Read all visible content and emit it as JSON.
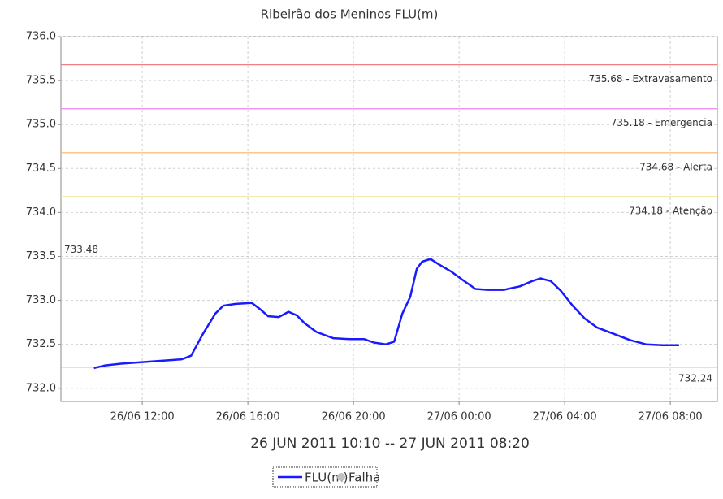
{
  "chart_data": {
    "type": "line",
    "title": "Ribeirão dos Meninos FLU(m)",
    "xlabel": "26 JUN 2011 10:10 -- 27 JUN 2011 08:20",
    "xlim": [
      8.92,
      33.78
    ],
    "xticks": [
      {
        "value": 12,
        "label": "26/06 12:00"
      },
      {
        "value": 16,
        "label": "26/06 16:00"
      },
      {
        "value": 20,
        "label": "26/06 20:00"
      },
      {
        "value": 24,
        "label": "27/06 00:00"
      },
      {
        "value": 28,
        "label": "27/06 04:00"
      },
      {
        "value": 32,
        "label": "27/06 08:00"
      }
    ],
    "ylim": [
      731.85,
      736.0
    ],
    "yticks": [
      {
        "value": 732,
        "label": "732.0"
      },
      732.5,
      {
        "value": 733,
        "label": "733.0"
      },
      733.5,
      {
        "value": 734,
        "label": "734.0"
      },
      734.5,
      {
        "value": 735,
        "label": "735.0"
      },
      735.5,
      {
        "value": 736,
        "label": "736.0"
      }
    ],
    "grid": true,
    "series": [
      {
        "name": "FLU(m)",
        "color": "#1a1aff",
        "x": [
          10.17,
          10.6,
          11.2,
          12.15,
          13.07,
          13.5,
          13.85,
          14.3,
          14.77,
          15.07,
          15.54,
          16.15,
          16.46,
          16.77,
          17.17,
          17.54,
          17.85,
          18.15,
          18.6,
          19.23,
          19.84,
          20.4,
          20.77,
          21.23,
          21.54,
          21.85,
          22.15,
          22.4,
          22.6,
          22.92,
          23.23,
          23.69,
          24.15,
          24.62,
          25.08,
          25.69,
          26.3,
          26.77,
          27.08,
          27.47,
          27.85,
          28.3,
          28.77,
          29.23,
          29.85,
          30.46,
          31.08,
          31.69,
          32.33
        ],
        "values": [
          732.23,
          732.26,
          732.28,
          732.3,
          732.32,
          732.33,
          732.37,
          732.62,
          732.85,
          732.94,
          732.96,
          732.97,
          732.9,
          732.82,
          732.81,
          732.87,
          732.83,
          732.74,
          732.64,
          732.57,
          732.56,
          732.56,
          732.52,
          732.5,
          732.53,
          732.85,
          733.04,
          733.36,
          733.44,
          733.47,
          733.41,
          733.33,
          733.23,
          733.13,
          733.12,
          733.12,
          733.16,
          733.22,
          733.25,
          733.22,
          733.11,
          732.94,
          732.79,
          732.69,
          732.62,
          732.55,
          732.5,
          732.49,
          732.49
        ]
      }
    ],
    "extra_legend": {
      "name": "Falha",
      "color": "#c0c0c0"
    },
    "annotations": [
      {
        "value": 735.68,
        "label": "735.68 - Extravasamento",
        "color": "#f08080"
      },
      {
        "value": 735.18,
        "label": "735.18 - Emergencia",
        "color": "#ee82ee"
      },
      {
        "value": 734.68,
        "label": "734.68 - Alerta",
        "color": "#ffb366"
      },
      {
        "value": 734.18,
        "label": "734.18 - Atenção",
        "color": "#f0e68c"
      },
      {
        "value": 733.48,
        "label": "733.48",
        "color": "#b0b0b0",
        "side": "left"
      },
      {
        "value": 732.24,
        "label": "732.24",
        "color": "#b0b0b0",
        "side": "below"
      }
    ]
  }
}
